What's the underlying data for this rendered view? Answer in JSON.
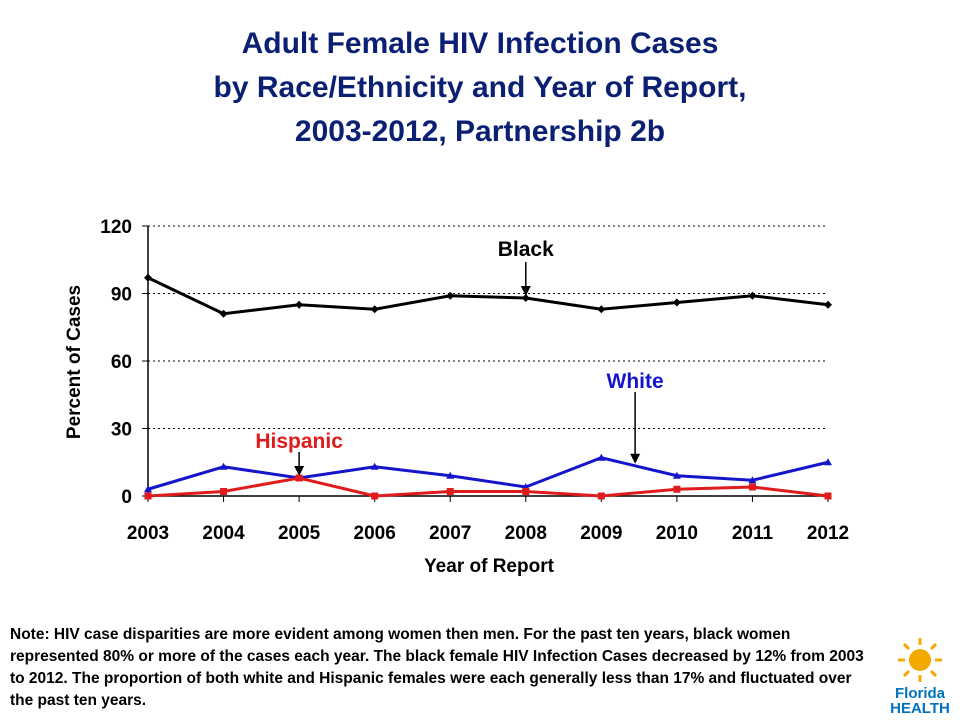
{
  "title": {
    "line1": "Adult Female HIV Infection Cases",
    "line2": "by Race/Ethnicity and Year of Report,",
    "line3": "2003-2012, Partnership 2b"
  },
  "chart_data": {
    "type": "line",
    "x": [
      "2003",
      "2004",
      "2005",
      "2006",
      "2007",
      "2008",
      "2009",
      "2010",
      "2011",
      "2012"
    ],
    "xlabel": "Year of Report",
    "ylabel": "Percent of Cases",
    "ylim": [
      0,
      120
    ],
    "yticks": [
      "0",
      "30",
      "60",
      "90",
      "120"
    ],
    "grid": "horizontal dashed",
    "series": [
      {
        "name": "Black",
        "color": "#000000",
        "marker": "diamond",
        "values": [
          97,
          81,
          85,
          83,
          89,
          88,
          83,
          86,
          89,
          85
        ]
      },
      {
        "name": "White",
        "color": "#1515CC",
        "marker": "triangle",
        "values": [
          3,
          13,
          8,
          13,
          9,
          4,
          17,
          9,
          7,
          15
        ]
      },
      {
        "name": "Hispanic",
        "color": "#E01B1B",
        "marker": "square",
        "values": [
          0,
          2,
          8,
          0,
          2,
          2,
          0,
          3,
          4,
          0
        ]
      }
    ],
    "annotations": [
      {
        "label": "Black",
        "color": "#000000",
        "arrow_to_year": "2008"
      },
      {
        "label": "White",
        "color": "#1515CC",
        "arrow_to_year": "2009-2010"
      },
      {
        "label": "Hispanic",
        "color": "#E01B1B",
        "arrow_to_year": "2005"
      }
    ]
  },
  "note": "Note: HIV case disparities are more evident among women then men.  For the past ten years, black women represented 80% or more of the cases each year.  The  black female HIV Infection Cases decreased by 12% from 2003 to 2012.  The proportion of both white and Hispanic females were each generally less than 17% and fluctuated over the past ten years.",
  "logo": {
    "line1": "Florida",
    "line2": "HEALTH",
    "color_top": "#F2A900",
    "color_bottom": "#0072BC"
  }
}
